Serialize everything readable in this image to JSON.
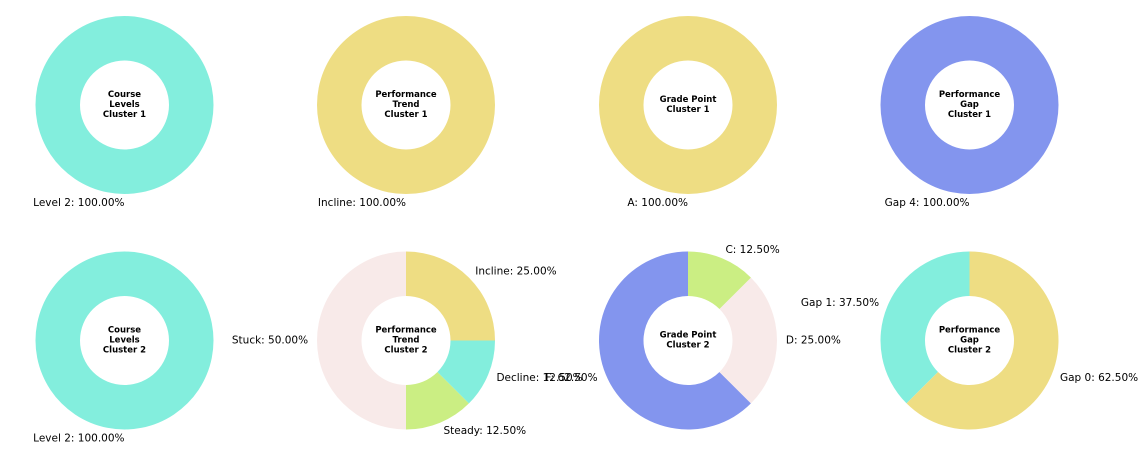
{
  "chart_data": [
    {
      "type": "pie",
      "title": "Course\nLevels\nCluster 1",
      "slices": [
        {
          "label": "Level 2: 100.00%",
          "value": 100.0,
          "color": "#83EEDD"
        }
      ]
    },
    {
      "type": "pie",
      "title": "Performance\nTrend\nCluster 1",
      "slices": [
        {
          "label": "Incline: 100.00%",
          "value": 100.0,
          "color": "#EEDD83"
        }
      ]
    },
    {
      "type": "pie",
      "title": "Grade Point\nCluster 1",
      "slices": [
        {
          "label": "A: 100.00%",
          "value": 100.0,
          "color": "#EEDD83"
        }
      ]
    },
    {
      "type": "pie",
      "title": "Performance\nGap\nCluster 1",
      "slices": [
        {
          "label": "Gap 4: 100.00%",
          "value": 100.0,
          "color": "#8395EE"
        }
      ]
    },
    {
      "type": "pie",
      "title": "Course\nLevels\nCluster 2",
      "slices": [
        {
          "label": "Level 2: 100.00%",
          "value": 100.0,
          "color": "#83EEDD"
        }
      ]
    },
    {
      "type": "pie",
      "title": "Performance\nTrend\nCluster 2",
      "slices": [
        {
          "label": "Stuck: 50.00%",
          "value": 50.0,
          "color": "#F8EAE9"
        },
        {
          "label": "Steady: 12.50%",
          "value": 12.5,
          "color": "#CBEE83"
        },
        {
          "label": "Decline: 12.50%",
          "value": 12.5,
          "color": "#83EEDD"
        },
        {
          "label": "Incline: 25.00%",
          "value": 25.0,
          "color": "#EEDD83"
        }
      ]
    },
    {
      "type": "pie",
      "title": "Grade Point\nCluster 2",
      "slices": [
        {
          "label": "F: 62.50%",
          "value": 62.5,
          "color": "#8395EE"
        },
        {
          "label": "D: 25.00%",
          "value": 25.0,
          "color": "#F8EAE9"
        },
        {
          "label": "C: 12.50%",
          "value": 12.5,
          "color": "#CBEE83"
        }
      ]
    },
    {
      "type": "pie",
      "title": "Performance\nGap\nCluster 2",
      "slices": [
        {
          "label": "Gap 1: 37.50%",
          "value": 37.5,
          "color": "#83EEDD"
        },
        {
          "label": "Gap 0: 62.50%",
          "value": 62.5,
          "color": "#EEDD83"
        }
      ]
    }
  ]
}
